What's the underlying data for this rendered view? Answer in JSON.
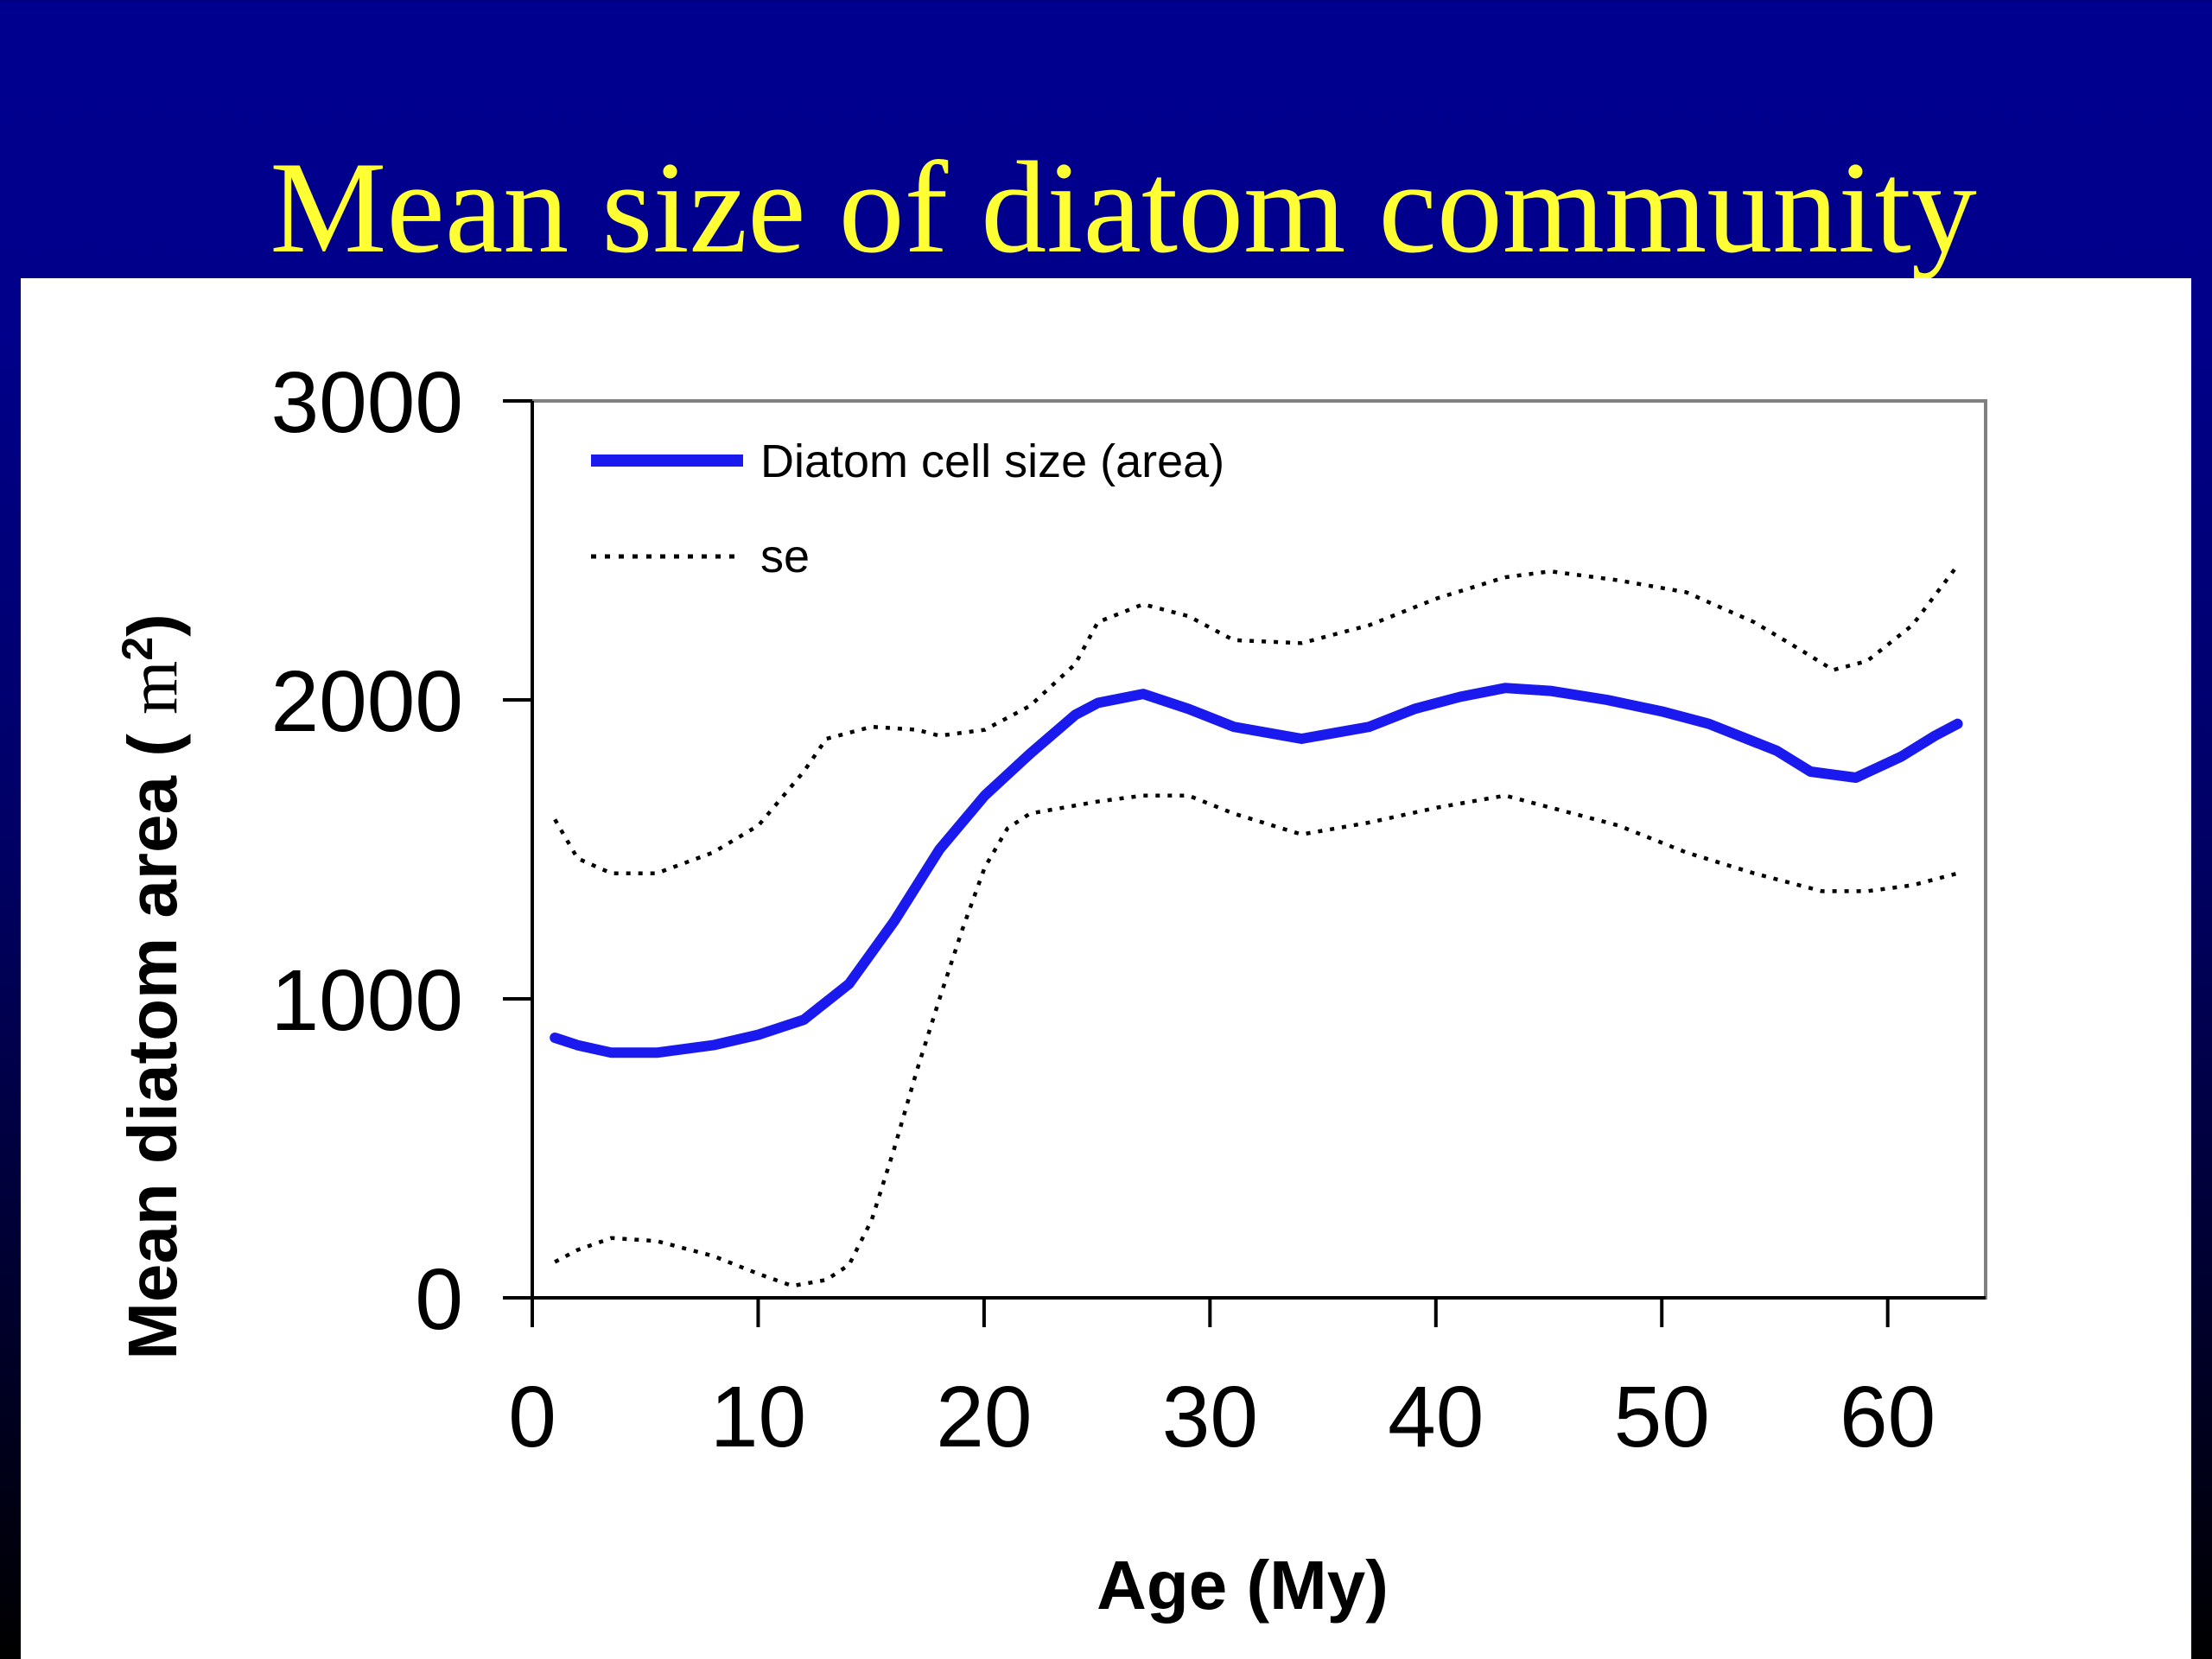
{
  "slide": {
    "title": "Mean size of diatom community",
    "title_color": "#ffff33",
    "background_color": "#00008f"
  },
  "chart_data": {
    "type": "line",
    "xlabel": "Age (My)",
    "ylabel_prefix": "Mean diatom area ( ",
    "ylabel_unit": "m",
    "ylabel_sup": "2",
    "ylabel_suffix": ")",
    "xlim": [
      0,
      65
    ],
    "ylim": [
      0,
      3000
    ],
    "xticks": [
      0,
      10,
      20,
      30,
      40,
      50,
      60
    ],
    "yticks": [
      0,
      1000,
      2000,
      3000
    ],
    "grid": false,
    "legend_position": "top-left",
    "series": [
      {
        "name": "Diatom cell size (area)",
        "style": "solid",
        "color": "#1a1aee",
        "x": [
          1,
          2,
          3.5,
          5.5,
          8,
          10,
          12,
          14,
          16,
          18,
          20,
          22,
          24,
          25,
          27,
          29,
          31,
          34,
          37,
          39,
          41,
          43,
          45,
          47.5,
          50,
          52,
          55,
          56.5,
          58.5,
          60.5,
          62,
          63
        ],
        "y": [
          870,
          845,
          820,
          820,
          845,
          880,
          930,
          1050,
          1260,
          1500,
          1680,
          1820,
          1950,
          1990,
          2020,
          1970,
          1910,
          1870,
          1910,
          1970,
          2010,
          2040,
          2030,
          2000,
          1960,
          1920,
          1830,
          1760,
          1740,
          1810,
          1880,
          1920
        ]
      },
      {
        "name": "se",
        "style": "dotted",
        "color": "#000000",
        "x": [
          1,
          2,
          3.5,
          5.5,
          8,
          10,
          12,
          13,
          15,
          17,
          18,
          20,
          22,
          24,
          25,
          27,
          29,
          31,
          34,
          37,
          40,
          43,
          45,
          48,
          51,
          54,
          56,
          57.5,
          59,
          61,
          63
        ],
        "y": [
          1600,
          1470,
          1420,
          1420,
          1490,
          1580,
          1760,
          1870,
          1910,
          1900,
          1880,
          1900,
          1980,
          2120,
          2260,
          2320,
          2280,
          2200,
          2190,
          2250,
          2340,
          2410,
          2430,
          2400,
          2360,
          2260,
          2170,
          2100,
          2130,
          2250,
          2450
        ]
      },
      {
        "name": "",
        "style": "dotted",
        "color": "#000000",
        "x": [
          1,
          2,
          3.5,
          5.5,
          8,
          10,
          11.5,
          13,
          14,
          15,
          16,
          17,
          18,
          19,
          20,
          21,
          22,
          25,
          27,
          29,
          31,
          34,
          37,
          40,
          43,
          45,
          48,
          51,
          54,
          57,
          59,
          61,
          63
        ],
        "y": [
          120,
          160,
          200,
          190,
          140,
          80,
          40,
          60,
          110,
          260,
          500,
          760,
          1000,
          1230,
          1440,
          1570,
          1620,
          1660,
          1680,
          1680,
          1620,
          1550,
          1590,
          1640,
          1680,
          1640,
          1580,
          1490,
          1420,
          1360,
          1360,
          1380,
          1420
        ]
      }
    ]
  }
}
